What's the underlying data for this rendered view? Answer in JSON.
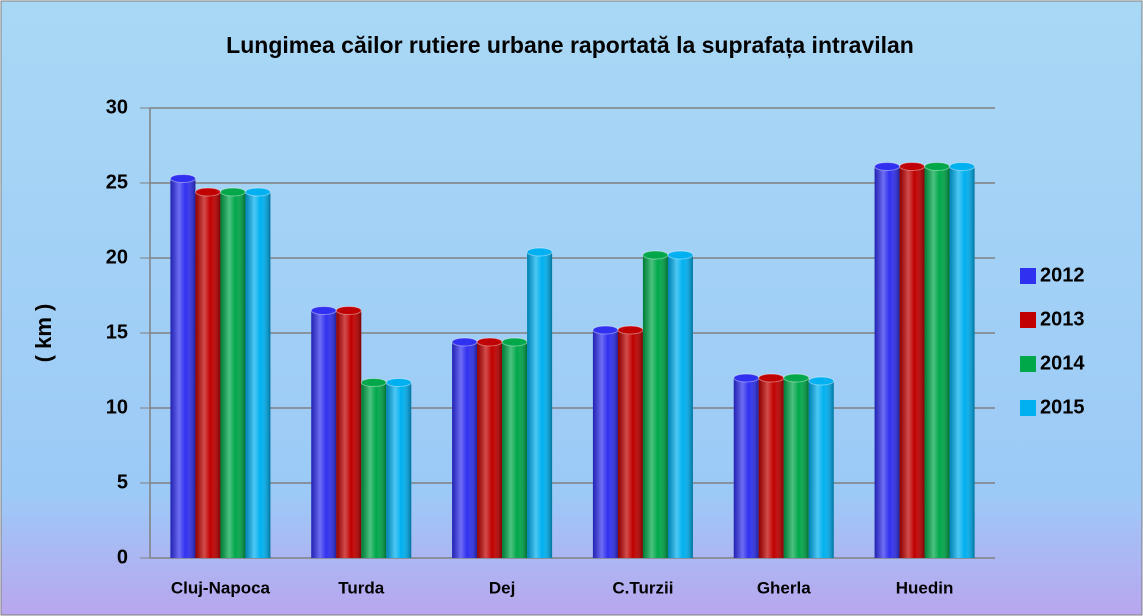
{
  "chart_data": {
    "type": "bar",
    "title": "Lungimea căilor rutiere urbane raportată la suprafața intravilan",
    "y_label": "( km )",
    "categories": [
      "Cluj-Napoca",
      "Turda",
      "Dej",
      "C.Turzii",
      "Gherla",
      "Huedin"
    ],
    "series": [
      {
        "name": "2012",
        "color": "#3030f0",
        "values": [
          25.3,
          16.5,
          14.4,
          15.2,
          12.0,
          26.1
        ]
      },
      {
        "name": "2013",
        "color": "#c00000",
        "values": [
          24.4,
          16.5,
          14.4,
          15.2,
          12.0,
          26.1
        ]
      },
      {
        "name": "2014",
        "color": "#00a84a",
        "values": [
          24.4,
          11.7,
          14.4,
          20.2,
          12.0,
          26.1
        ]
      },
      {
        "name": "2015",
        "color": "#00b0f0",
        "values": [
          24.4,
          11.7,
          20.4,
          20.2,
          11.8,
          26.1
        ]
      }
    ],
    "ylim": [
      0,
      30
    ],
    "yticks": [
      0,
      5,
      10,
      15,
      20,
      25,
      30
    ],
    "grid": true,
    "legend": "right"
  }
}
